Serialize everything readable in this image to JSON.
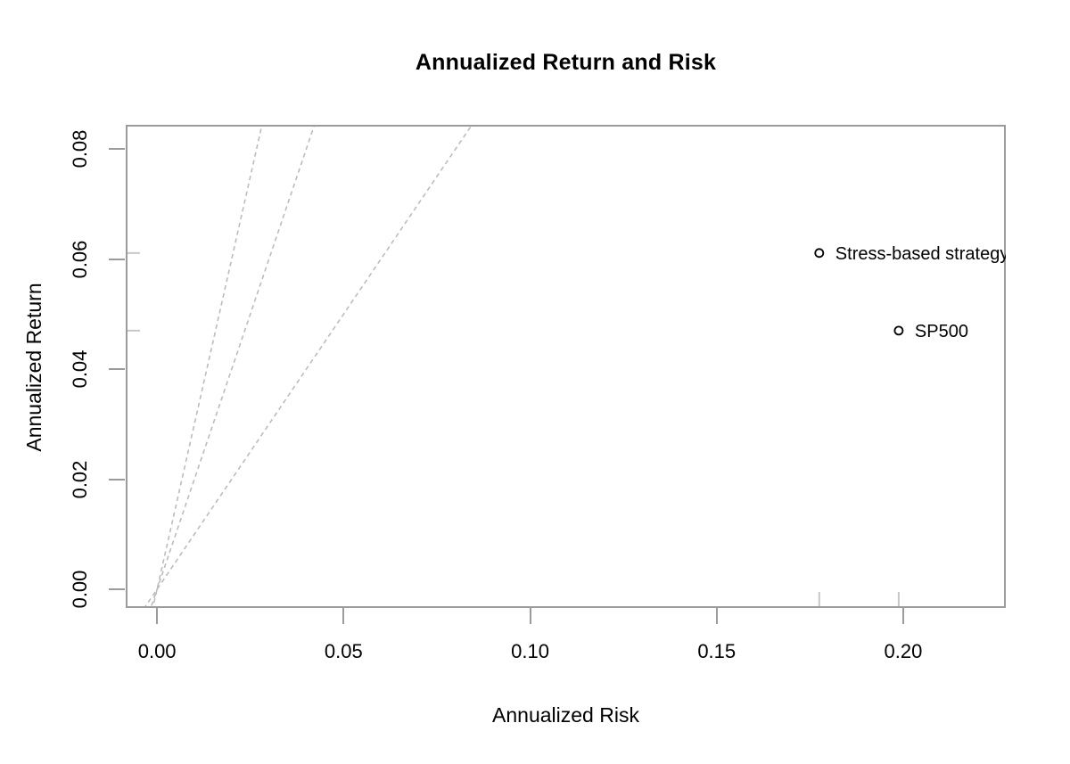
{
  "chart_data": {
    "type": "scatter",
    "title": "Annualized Return and Risk",
    "xlabel": "Annualized Risk",
    "ylabel": "Annualized Return",
    "xlim": [
      -0.0084,
      0.2275
    ],
    "ylim": [
      -0.0034,
      0.0844
    ],
    "x_ticks": [
      0.0,
      0.05,
      0.1,
      0.15,
      0.2
    ],
    "x_tick_labels": [
      "0.00",
      "0.05",
      "0.10",
      "0.15",
      "0.20"
    ],
    "y_ticks": [
      0.0,
      0.02,
      0.04,
      0.06,
      0.08
    ],
    "y_tick_labels": [
      "0.00",
      "0.02",
      "0.04",
      "0.06",
      "0.08"
    ],
    "grid": false,
    "legend": "none",
    "points": [
      {
        "label": "Stress-based strategy",
        "x": 0.1775,
        "y": 0.0611
      },
      {
        "label": "SP500",
        "x": 0.1988,
        "y": 0.047
      }
    ],
    "reference_lines": [
      {
        "slope": 1,
        "intercept": 0,
        "style": "dashed"
      },
      {
        "slope": 2,
        "intercept": 0,
        "style": "dashed"
      },
      {
        "slope": 3,
        "intercept": 0,
        "style": "dashed"
      }
    ],
    "rug_marks": {
      "x": [
        0.1775,
        0.1988
      ],
      "y": [
        0.0611,
        0.047
      ]
    }
  },
  "colors": {
    "background": "#ffffff",
    "axis": "#9b9b9b",
    "reference_line": "#bcbcbc",
    "rug": "#c7c7c7",
    "text": "#000000",
    "point_stroke": "#000000"
  }
}
